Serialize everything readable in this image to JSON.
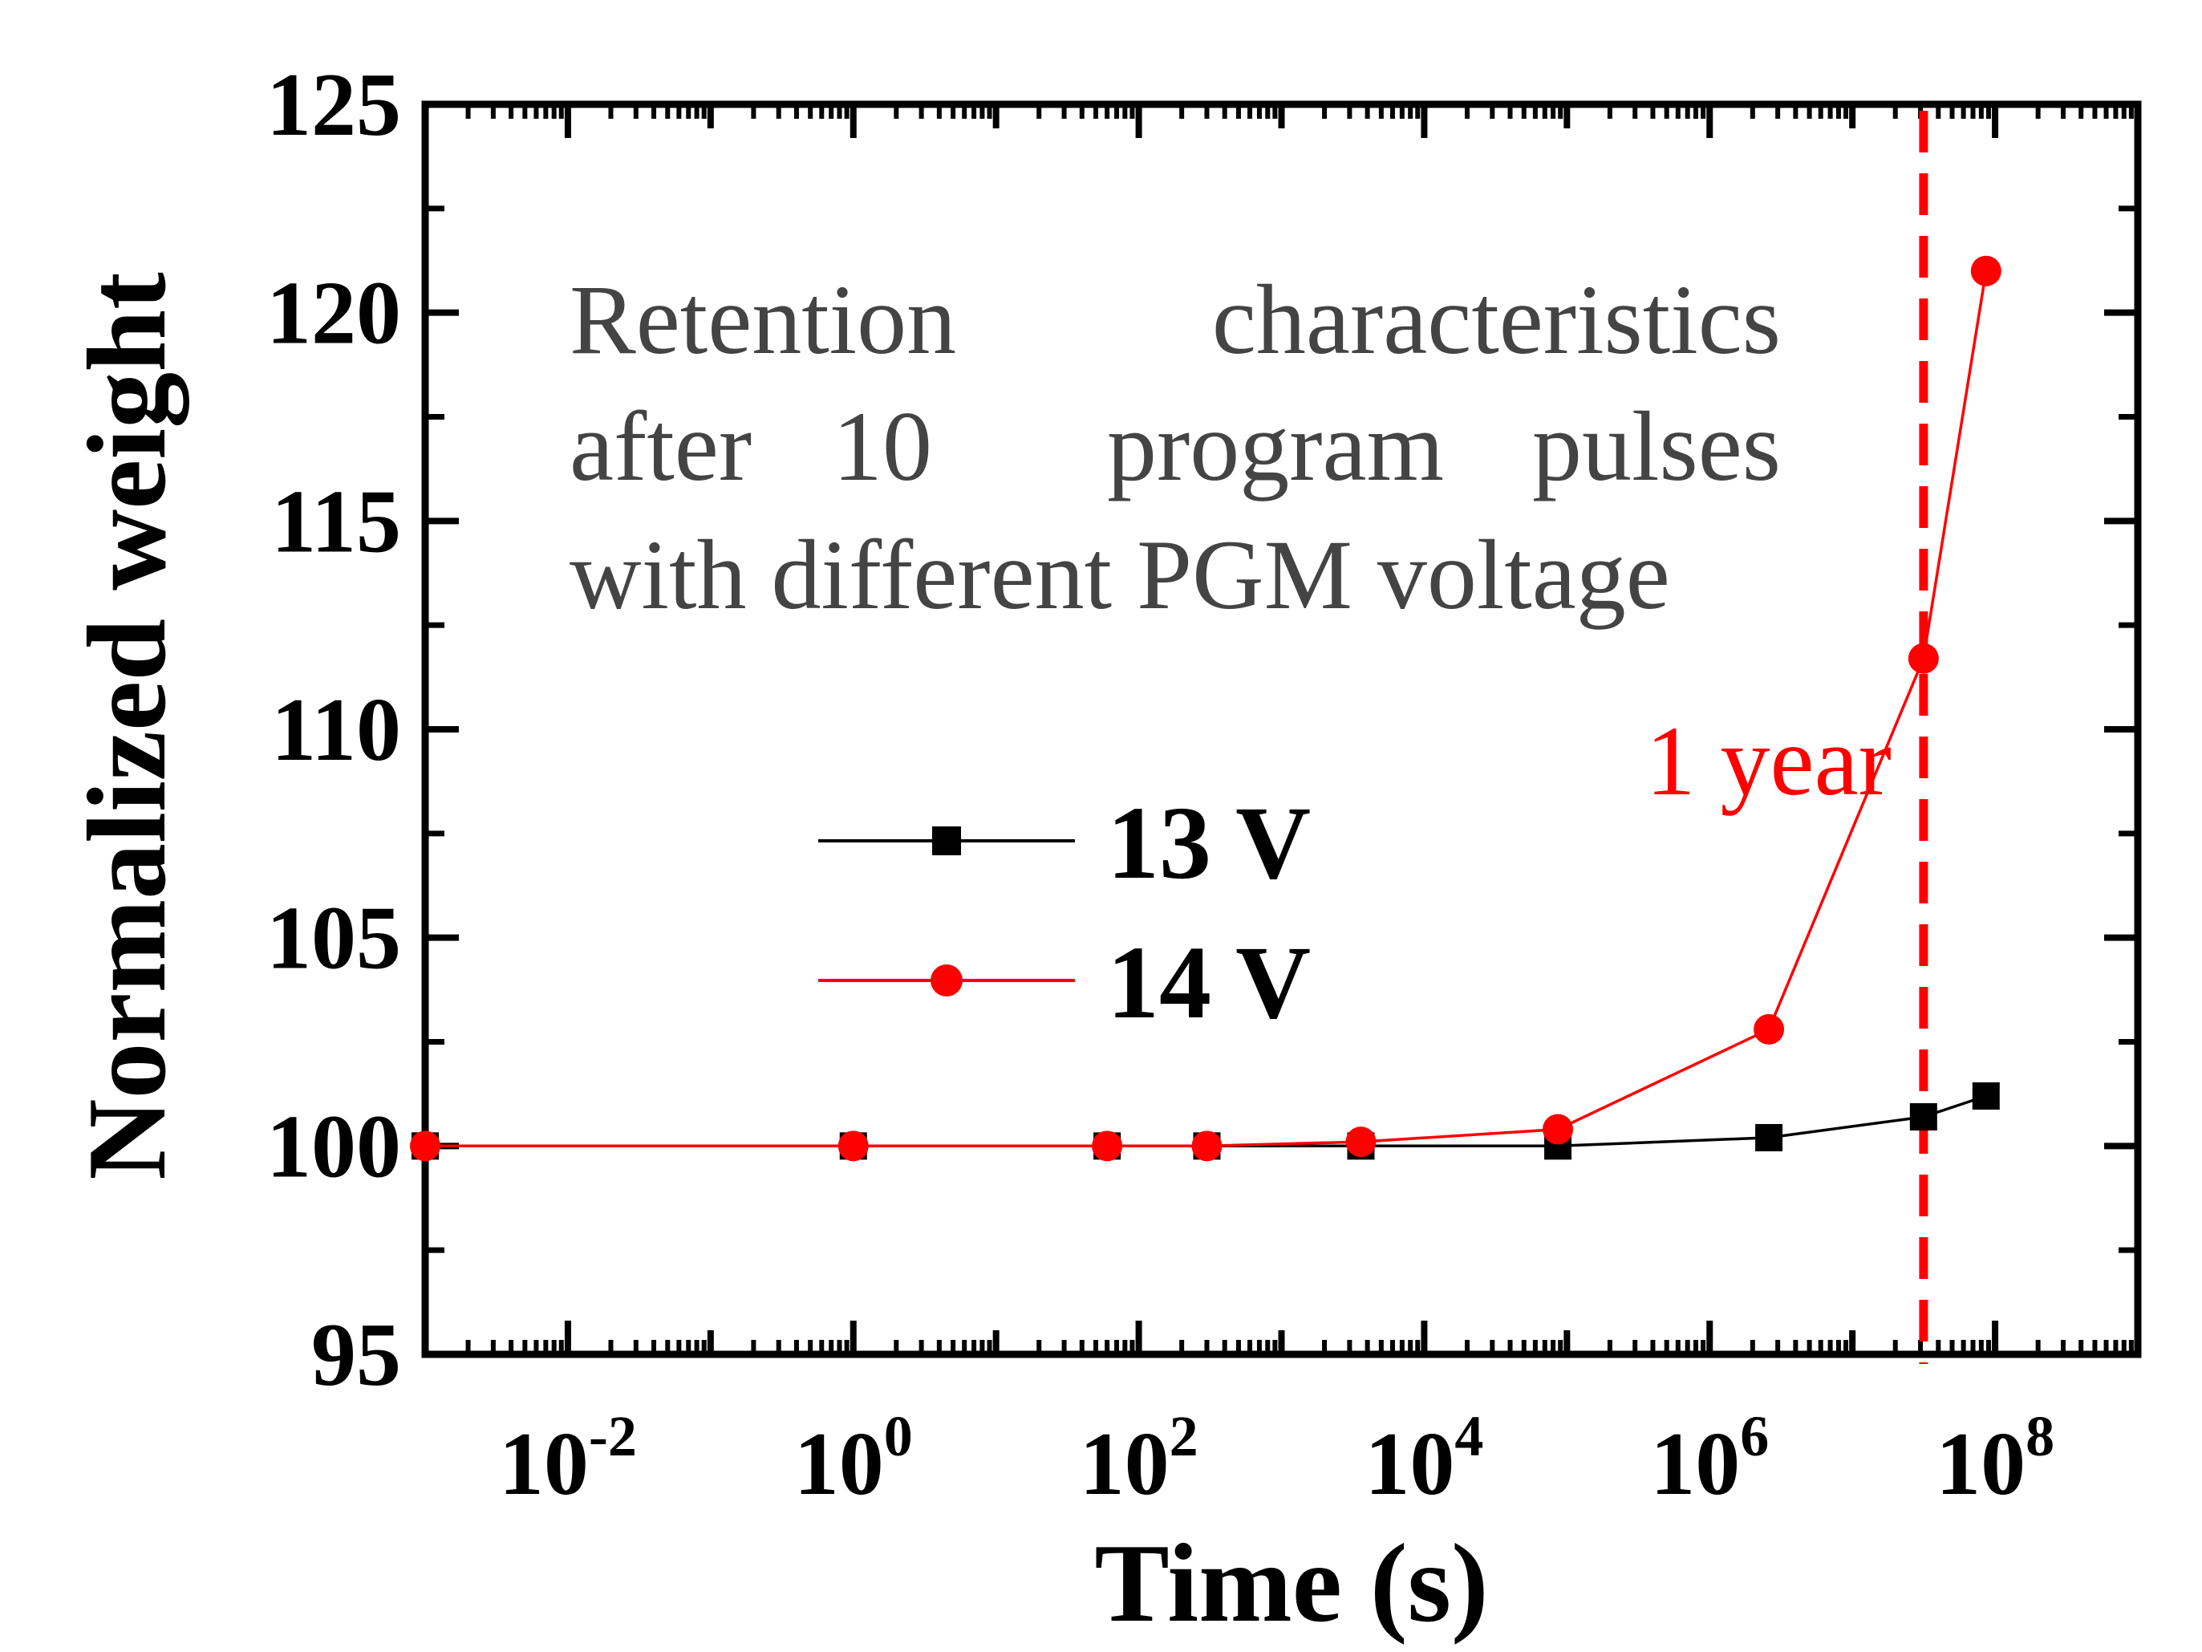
{
  "chart_data": {
    "type": "line",
    "title": "",
    "xlabel": "Time (s)",
    "ylabel": "Normalized weight",
    "xscale": "log",
    "xlim": [
      0.001,
      1000000000
    ],
    "ylim": [
      95,
      125
    ],
    "yticks": [
      95,
      100,
      105,
      110,
      115,
      120,
      125
    ],
    "yticks_minor": [
      97.5,
      102.5,
      107.5,
      112.5,
      117.5,
      122.5
    ],
    "xticks": [
      {
        "value": 0.01,
        "base": "10",
        "exp": "-2"
      },
      {
        "value": 1,
        "base": "10",
        "exp": "0"
      },
      {
        "value": 100,
        "base": "10",
        "exp": "2"
      },
      {
        "value": 10000,
        "base": "10",
        "exp": "4"
      },
      {
        "value": 1000000,
        "base": "10",
        "exp": "6"
      },
      {
        "value": 100000000,
        "base": "10",
        "exp": "8"
      }
    ],
    "grid": false,
    "legend_position": "center-left",
    "series": [
      {
        "name": "13 V",
        "color": "#000000",
        "marker": "square",
        "x": [
          0.001,
          1,
          60,
          300,
          3600,
          86400,
          2600000,
          31500000,
          86400000
        ],
        "y": [
          100,
          100,
          100,
          100,
          100,
          100,
          100.2,
          100.7,
          101.2
        ]
      },
      {
        "name": "14 V",
        "color": "#ff0000",
        "marker": "circle",
        "x": [
          0.001,
          1,
          60,
          300,
          3600,
          86400,
          2600000,
          31500000,
          86400000
        ],
        "y": [
          100,
          100,
          100,
          100,
          100.1,
          100.4,
          102.8,
          111.7,
          121
        ]
      }
    ],
    "reference_line": {
      "label": "1 year",
      "x": 31536000,
      "color": "#ff0000",
      "style": "dashed"
    },
    "annotation": {
      "lines": [
        [
          "Retention",
          "characteristics"
        ],
        [
          "after",
          "10",
          "program",
          "pulses"
        ],
        [
          "with different PGM voltage"
        ]
      ],
      "color": "#444444"
    }
  }
}
